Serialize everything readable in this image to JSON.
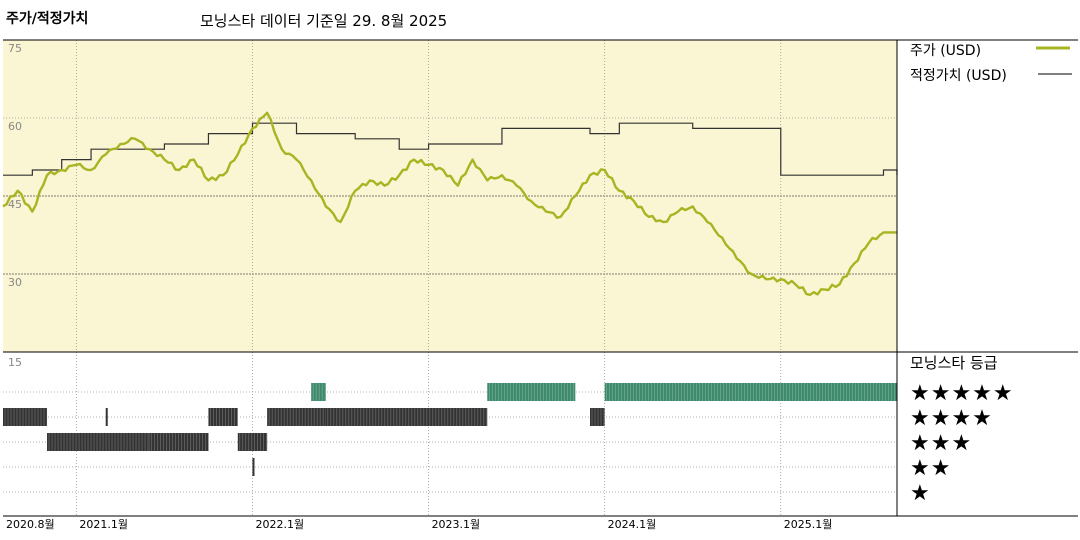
{
  "header": {
    "title": "주가/적정가치",
    "subtitle": "모닝스타 데이터 기준일 29. 8월 2025"
  },
  "legend": {
    "price_label": "주가 (USD)",
    "fair_label": "적정가치 (USD)",
    "rating_title": "모닝스타 등급"
  },
  "colors": {
    "plot_bg": "#faf5d2",
    "price_line": "#a8b422",
    "fair_line": "#333333",
    "five_star_bars": "#3d8a6c",
    "other_star_bars": "#333333"
  },
  "rating_panel": {
    "y_label": "15",
    "star_rows": [
      "★★★★★",
      "★★★★",
      "★★★",
      "★★",
      "★"
    ]
  },
  "chart_data": {
    "type": "line",
    "x_range": [
      "2020-08",
      "2025-08-29"
    ],
    "x_ticks": [
      "2020.8월",
      "2021.1월",
      "2022.1월",
      "2023.1월",
      "2024.1월",
      "2025.1월"
    ],
    "y_ticks": [
      75,
      60,
      45,
      30
    ],
    "ylim": [
      15,
      75
    ],
    "grid": true,
    "legend_position": "right",
    "series": [
      {
        "name": "주가 (USD)",
        "points": [
          [
            "2020-08",
            43
          ],
          [
            "2020-09",
            46
          ],
          [
            "2020-10",
            42
          ],
          [
            "2020-11",
            49
          ],
          [
            "2020-12",
            50
          ],
          [
            "2021-01",
            51
          ],
          [
            "2021-02",
            50
          ],
          [
            "2021-03",
            53
          ],
          [
            "2021-04",
            55
          ],
          [
            "2021-05",
            56
          ],
          [
            "2021-06",
            54
          ],
          [
            "2021-07",
            52
          ],
          [
            "2021-08",
            50
          ],
          [
            "2021-09",
            52
          ],
          [
            "2021-10",
            48
          ],
          [
            "2021-11",
            49
          ],
          [
            "2021-12",
            53
          ],
          [
            "2022-01",
            58
          ],
          [
            "2022-02",
            61
          ],
          [
            "2022-03",
            54
          ],
          [
            "2022-04",
            52
          ],
          [
            "2022-05",
            48
          ],
          [
            "2022-06",
            43
          ],
          [
            "2022-07",
            40
          ],
          [
            "2022-08",
            46
          ],
          [
            "2022-09",
            48
          ],
          [
            "2022-10",
            47
          ],
          [
            "2022-11",
            49
          ],
          [
            "2022-12",
            52
          ],
          [
            "2023-01",
            51
          ],
          [
            "2023-02",
            50
          ],
          [
            "2023-03",
            47
          ],
          [
            "2023-04",
            52
          ],
          [
            "2023-05",
            48
          ],
          [
            "2023-06",
            49
          ],
          [
            "2023-07",
            47
          ],
          [
            "2023-08",
            44
          ],
          [
            "2023-09",
            42
          ],
          [
            "2023-10",
            41
          ],
          [
            "2023-11",
            45
          ],
          [
            "2023-12",
            49
          ],
          [
            "2024-01",
            50
          ],
          [
            "2024-02",
            46
          ],
          [
            "2024-03",
            44
          ],
          [
            "2024-04",
            41
          ],
          [
            "2024-05",
            40
          ],
          [
            "2024-06",
            42
          ],
          [
            "2024-07",
            43
          ],
          [
            "2024-08",
            40
          ],
          [
            "2024-09",
            37
          ],
          [
            "2024-10",
            33
          ],
          [
            "2024-11",
            30
          ],
          [
            "2024-12",
            29
          ],
          [
            "2025-01",
            29
          ],
          [
            "2025-02",
            28
          ],
          [
            "2025-03",
            26
          ],
          [
            "2025-04",
            27
          ],
          [
            "2025-05",
            28
          ],
          [
            "2025-06",
            32
          ],
          [
            "2025-07",
            36
          ],
          [
            "2025-08",
            38
          ]
        ]
      },
      {
        "name": "적정가치 (USD)",
        "steps": [
          [
            "2020-08",
            49
          ],
          [
            "2020-10",
            50
          ],
          [
            "2020-12",
            52
          ],
          [
            "2021-02",
            54
          ],
          [
            "2021-07",
            55
          ],
          [
            "2021-10",
            57
          ],
          [
            "2022-01",
            59
          ],
          [
            "2022-04",
            57
          ],
          [
            "2022-08",
            56
          ],
          [
            "2022-11",
            54
          ],
          [
            "2023-01",
            55
          ],
          [
            "2023-06",
            58
          ],
          [
            "2023-12",
            57
          ],
          [
            "2024-02",
            59
          ],
          [
            "2024-07",
            58
          ],
          [
            "2025-01",
            49
          ],
          [
            "2025-08",
            50
          ],
          [
            "2025-08-29",
            49
          ]
        ]
      }
    ],
    "rating_periods": [
      {
        "start": "2020-08",
        "end": "2020-11",
        "stars": 4
      },
      {
        "start": "2020-11",
        "end": "2021-06",
        "stars": 3
      },
      {
        "start": "2021-03",
        "end": "2021-03",
        "stars": 4
      },
      {
        "start": "2021-06",
        "end": "2021-10",
        "stars": 3
      },
      {
        "start": "2021-10",
        "end": "2021-12",
        "stars": 4
      },
      {
        "start": "2021-12",
        "end": "2022-01",
        "stars": 3
      },
      {
        "start": "2022-01",
        "end": "2022-01",
        "stars": 2
      },
      {
        "start": "2022-01",
        "end": "2022-02",
        "stars": 3
      },
      {
        "start": "2022-02",
        "end": "2022-06",
        "stars": 4
      },
      {
        "start": "2022-05",
        "end": "2022-06",
        "stars": 5
      },
      {
        "start": "2022-06",
        "end": "2023-05",
        "stars": 4
      },
      {
        "start": "2023-05",
        "end": "2023-11",
        "stars": 5
      },
      {
        "start": "2023-12",
        "end": "2024-01",
        "stars": 4
      },
      {
        "start": "2024-01",
        "end": "2025-08-29",
        "stars": 5
      }
    ]
  }
}
